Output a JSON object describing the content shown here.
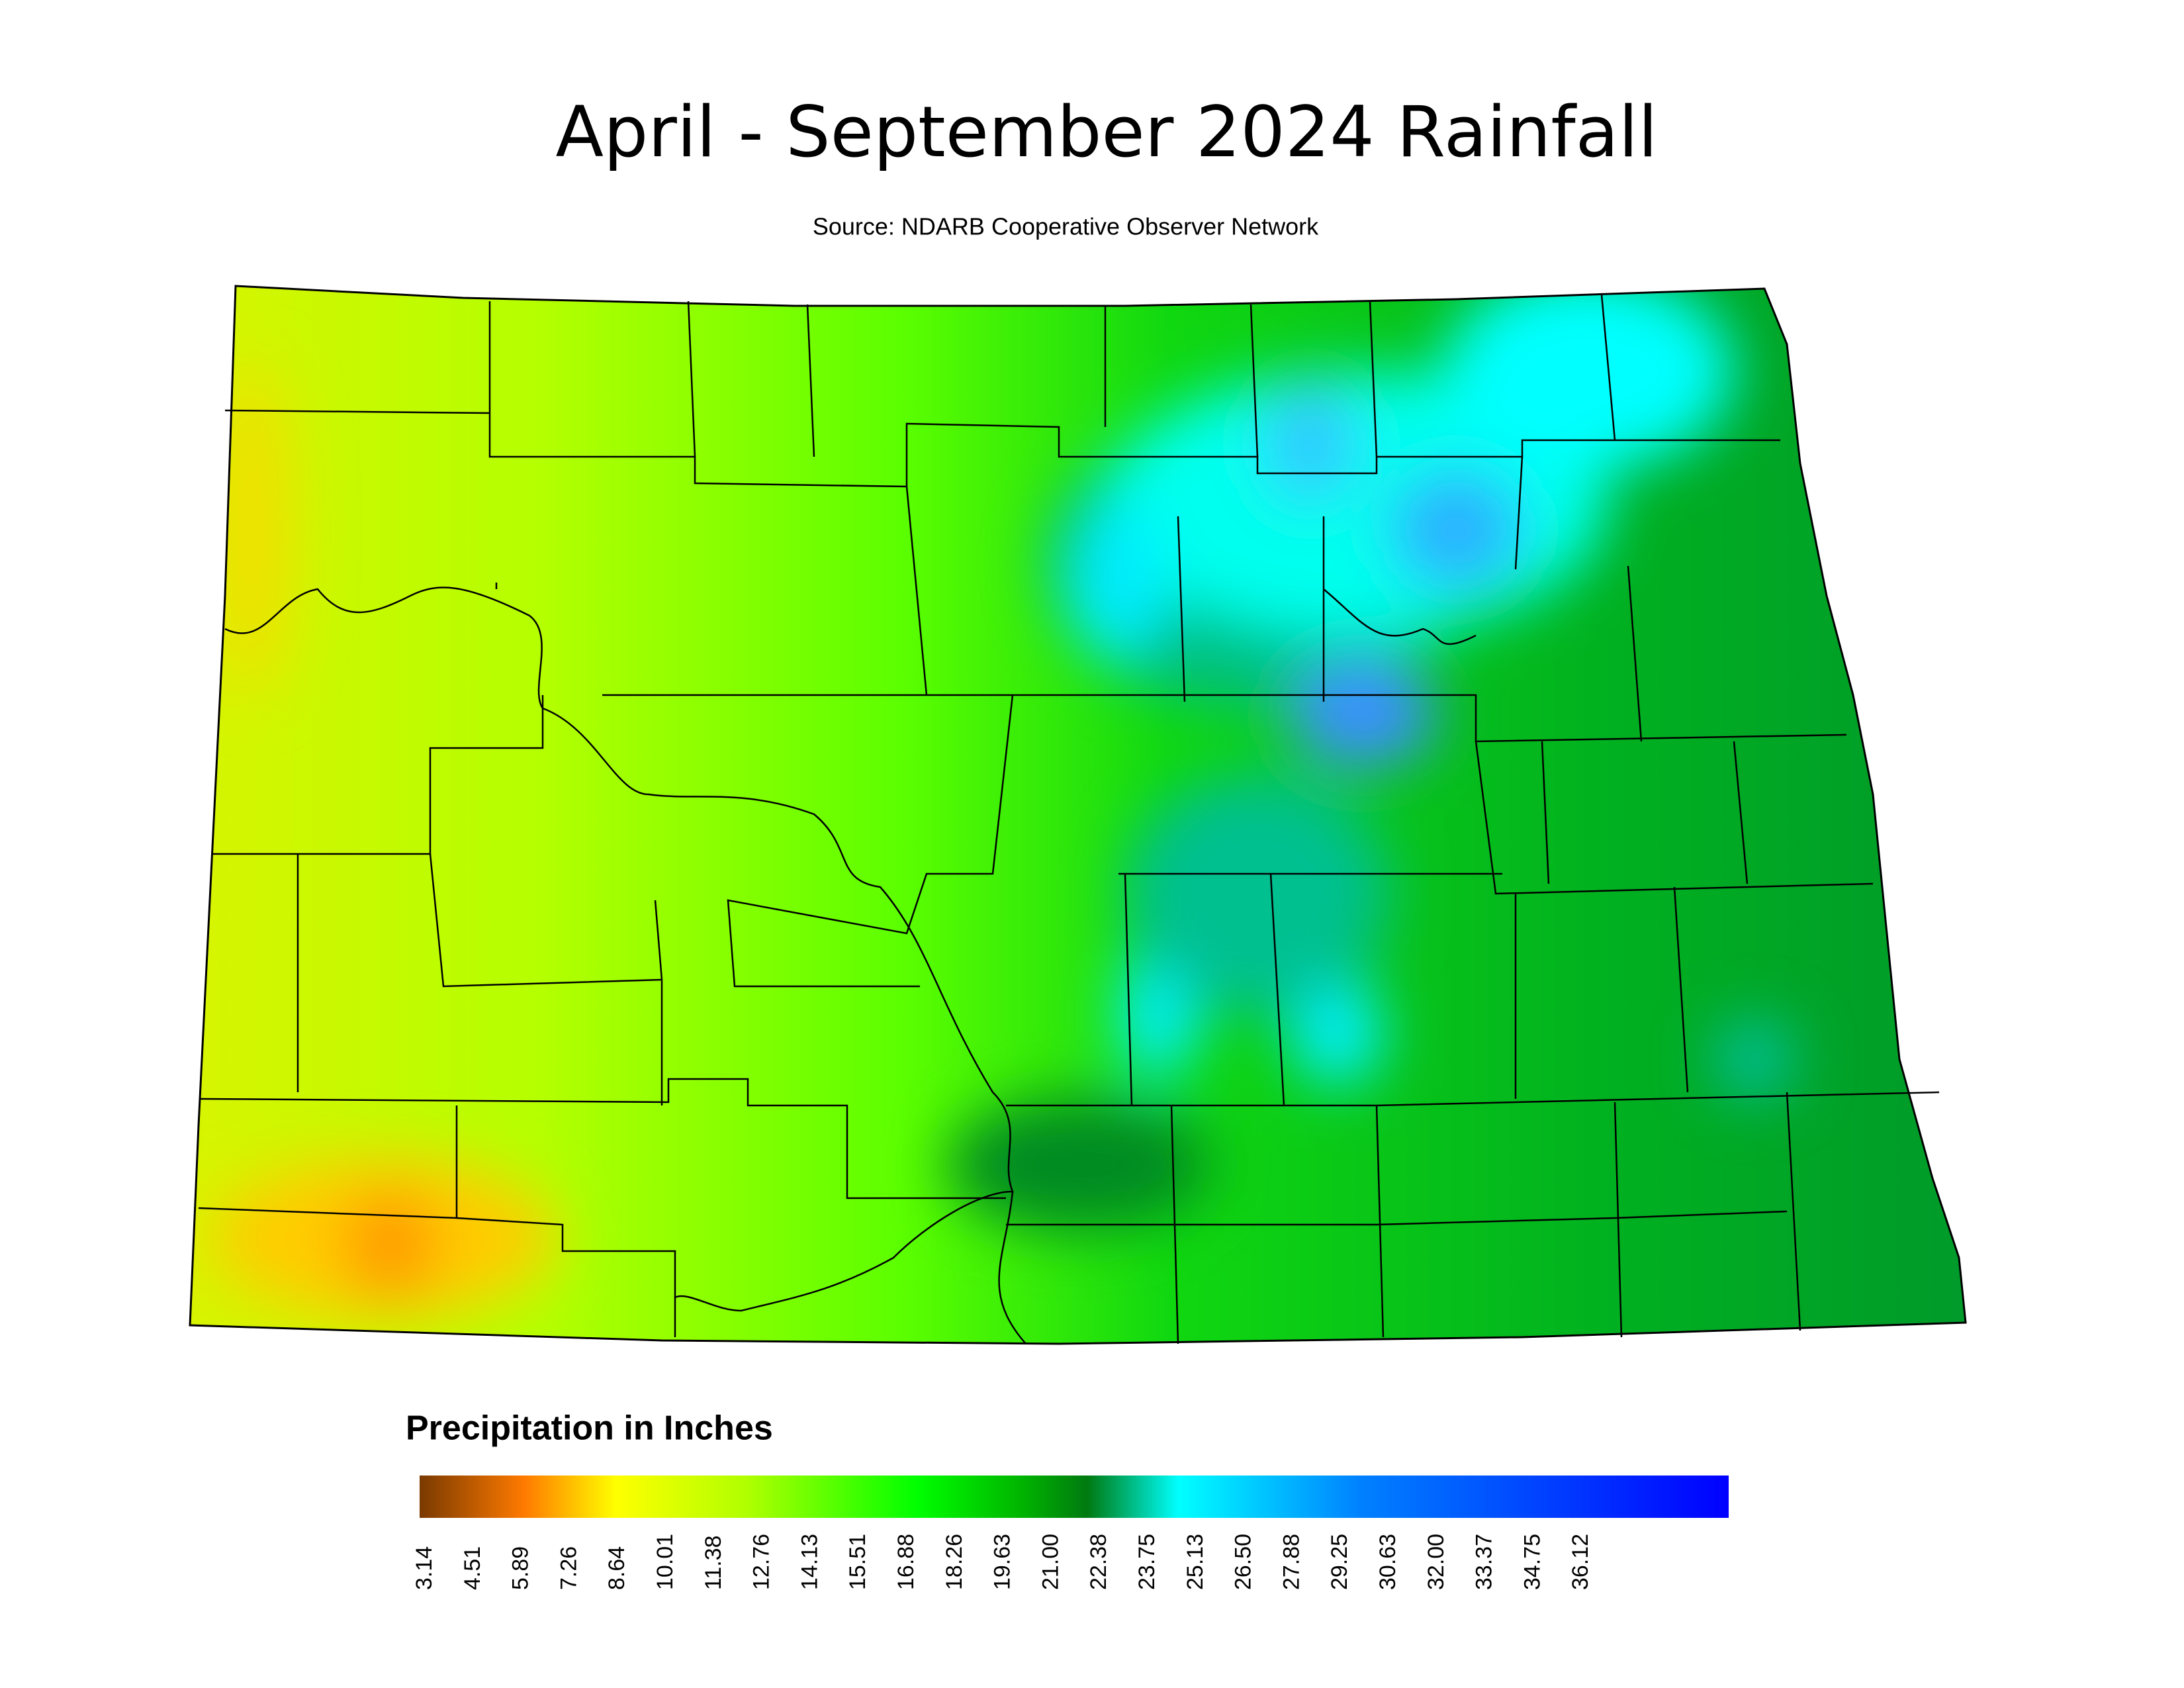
{
  "header": {
    "title": "April - September 2024 Rainfall",
    "subtitle": "Source: NDARB Cooperative Observer Network"
  },
  "legend": {
    "title": "Precipitation in Inches",
    "ticks": [
      "3.14",
      "4.51",
      "5.89",
      "7.26",
      "8.64",
      "10.01",
      "11.38",
      "12.76",
      "14.13",
      "15.51",
      "16.88",
      "18.26",
      "19.63",
      "21.00",
      "22.38",
      "23.75",
      "25.13",
      "26.50",
      "27.88",
      "29.25",
      "30.63",
      "32.00",
      "33.37",
      "34.75",
      "36.12"
    ]
  }
}
